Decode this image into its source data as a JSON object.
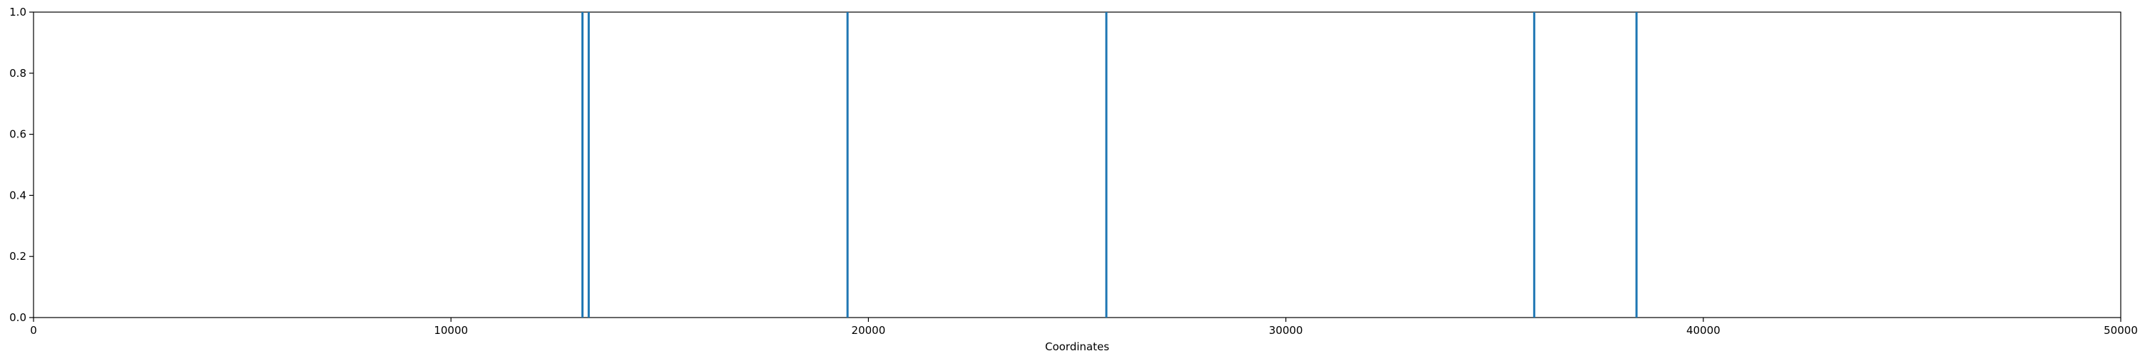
{
  "chart_data": {
    "type": "bar",
    "title": "",
    "xlabel": "Coordinates",
    "ylabel": "",
    "xlim": [
      0,
      50000
    ],
    "ylim": [
      0,
      1.0
    ],
    "x_ticks": [
      0,
      10000,
      20000,
      30000,
      40000,
      50000
    ],
    "x_tick_labels": [
      "0",
      "10000",
      "20000",
      "30000",
      "40000",
      "50000"
    ],
    "y_ticks": [
      0.0,
      0.2,
      0.4,
      0.6,
      0.8,
      1.0
    ],
    "y_tick_labels": [
      "0.0",
      "0.2",
      "0.4",
      "0.6",
      "0.8",
      "1.0"
    ],
    "grid": false,
    "legend": "none",
    "color": "#1f77b4",
    "series": [
      {
        "x": [
          13150,
          13300,
          19500,
          25700,
          35950,
          38400
        ],
        "values": [
          1,
          1,
          1,
          1,
          1,
          1
        ]
      }
    ]
  }
}
